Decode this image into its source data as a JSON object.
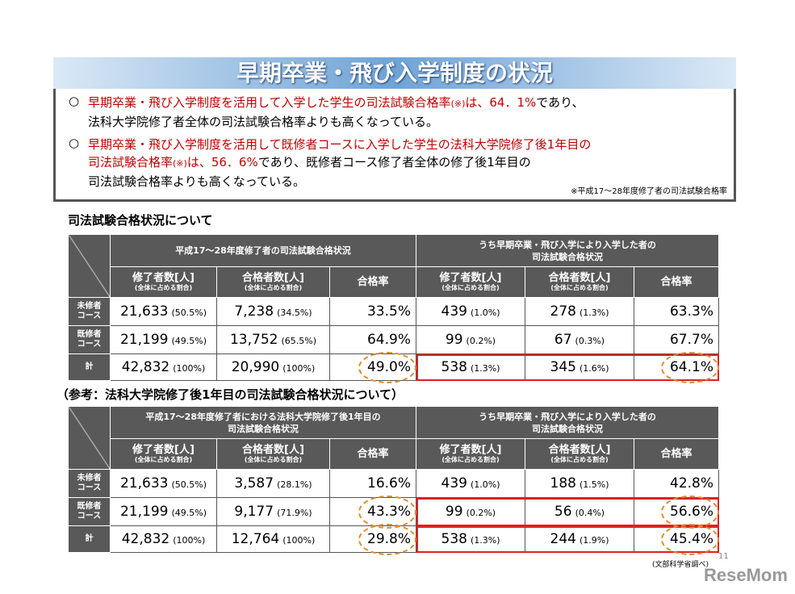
{
  "header": {
    "title": "早期卒業・飛び入学制度の状況"
  },
  "summary": {
    "bullets": [
      {
        "lines": [
          [
            {
              "text": "早期卒業・飛び入学制度を活用して入学した学生の司法試験合格率",
              "color": "#c00000"
            },
            {
              "text": "(※)",
              "color": "#c00000",
              "small": true
            },
            {
              "text": "は、64．1%",
              "color": "#c00000"
            },
            {
              "text": "であり、",
              "color": "#000000"
            }
          ],
          [
            {
              "text": "法科大学院修了者全体の司法試験合格率よりも高くなっている。",
              "color": "#000000"
            }
          ]
        ]
      },
      {
        "lines": [
          [
            {
              "text": "早期卒業・飛び入学制度を活用して既修者コースに入学した学生の法科大学院修了後1年目の",
              "color": "#c00000"
            }
          ],
          [
            {
              "text": "司法試験合格率",
              "color": "#c00000"
            },
            {
              "text": "(※)",
              "color": "#c00000",
              "small": true
            },
            {
              "text": "は、56．6%",
              "color": "#c00000"
            },
            {
              "text": "であり、既修者コース修了者全体の修了後1年目の",
              "color": "#000000"
            }
          ],
          [
            {
              "text": "司法試験合格率よりも高くなっている。",
              "color": "#000000"
            }
          ]
        ]
      }
    ],
    "note": "※平成17～28年度修了者の司法試験合格率"
  },
  "tables": [
    {
      "title": "司法試験合格状況について",
      "groups": [
        [
          "平成17～28年度修了者の司法試験合格状況"
        ],
        [
          "うち早期卒業・飛び入学により入学した者の",
          "司法試験合格状況"
        ]
      ],
      "columns": [
        {
          "label": "修了者数[人]",
          "sub": "(全体に占める割合)"
        },
        {
          "label": "合格者数[人]",
          "sub": "(全体に占める割合)"
        },
        {
          "label": "合格率"
        }
      ],
      "rows": [
        {
          "label": [
            "未修者",
            "コース"
          ],
          "cells": [
            {
              "value": "21,633",
              "share": "(50.5%)"
            },
            {
              "value": "7,238",
              "share": "(34.5%)"
            },
            {
              "value": "33.5%"
            },
            {
              "value": "439",
              "share": "(1.0%)"
            },
            {
              "value": "278",
              "share": "(1.3%)"
            },
            {
              "value": "63.3%"
            }
          ]
        },
        {
          "label": [
            "既修者",
            "コース"
          ],
          "cells": [
            {
              "value": "21,199",
              "share": "(49.5%)"
            },
            {
              "value": "13,752",
              "share": "(65.5%)"
            },
            {
              "value": "64.9%"
            },
            {
              "value": "99",
              "share": "(0.2%)"
            },
            {
              "value": "67",
              "share": "(0.3%)"
            },
            {
              "value": "67.7%"
            }
          ]
        },
        {
          "label": [
            "計"
          ],
          "cells": [
            {
              "value": "42,832",
              "share": "(100%)"
            },
            {
              "value": "20,990",
              "share": "(100%)"
            },
            {
              "value": "49.0%"
            },
            {
              "value": "538",
              "share": "(1.3%)"
            },
            {
              "value": "345",
              "share": "(1.6%)"
            },
            {
              "value": "64.1%"
            }
          ]
        }
      ]
    },
    {
      "title": "（参考：法科大学院修了後1年目の司法試験合格状況について）",
      "groups": [
        [
          "平成17～28年度修了者における法科大学院修了後1年目の",
          "司法試験合格状況"
        ],
        [
          "うち早期卒業・飛び入学により入学した者の",
          "司法試験合格状況"
        ]
      ],
      "columns": [
        {
          "label": "修了者数[人]",
          "sub": "(全体に占める割合)"
        },
        {
          "label": "合格者数[人]",
          "sub": "(全体に占める割合)"
        },
        {
          "label": "合格率"
        }
      ],
      "rows": [
        {
          "label": [
            "未修者",
            "コース"
          ],
          "cells": [
            {
              "value": "21,633",
              "share": "(50.5%)"
            },
            {
              "value": "3,587",
              "share": "(28.1%)"
            },
            {
              "value": "16.6%"
            },
            {
              "value": "439",
              "share": "(1.0%)"
            },
            {
              "value": "188",
              "share": "(1.5%)"
            },
            {
              "value": "42.8%"
            }
          ]
        },
        {
          "label": [
            "既修者",
            "コース"
          ],
          "cells": [
            {
              "value": "21,199",
              "share": "(49.5%)"
            },
            {
              "value": "9,177",
              "share": "(71.9%)"
            },
            {
              "value": "43.3%"
            },
            {
              "value": "99",
              "share": "(0.2%)"
            },
            {
              "value": "56",
              "share": "(0.4%)"
            },
            {
              "value": "56.6%"
            }
          ]
        },
        {
          "label": [
            "計"
          ],
          "cells": [
            {
              "value": "42,832",
              "share": "(100%)"
            },
            {
              "value": "12,764",
              "share": "(100%)"
            },
            {
              "value": "29.8%"
            },
            {
              "value": "538",
              "share": "(1.3%)"
            },
            {
              "value": "244",
              "share": "(1.9%)"
            },
            {
              "value": "45.4%"
            }
          ]
        }
      ]
    }
  ],
  "footer": {
    "source": "(文部科学省調べ)",
    "page": "11",
    "logo": "ReseMom"
  }
}
